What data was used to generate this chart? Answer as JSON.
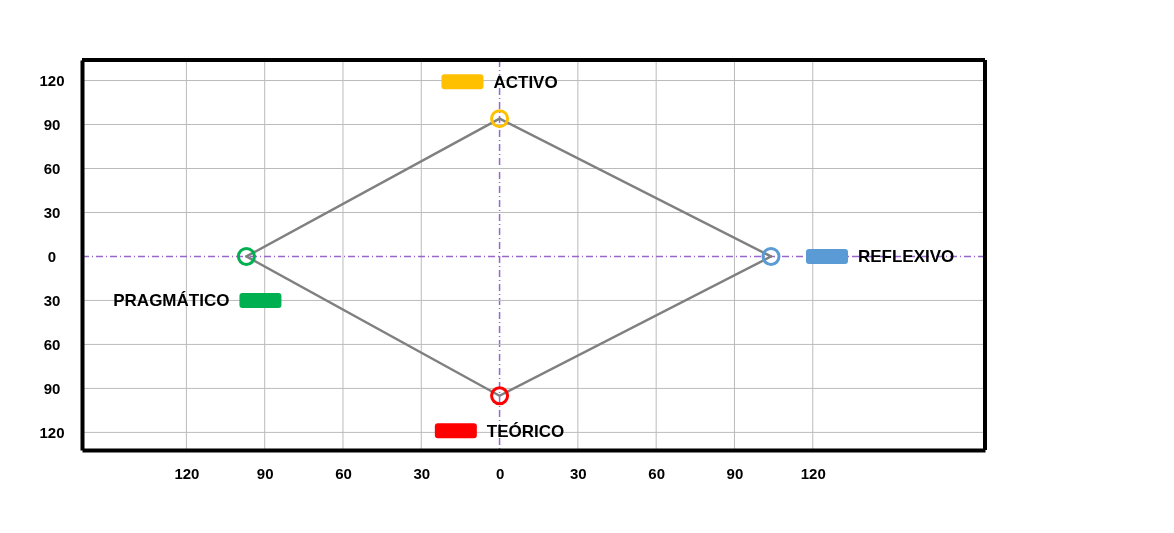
{
  "chart_data": {
    "type": "scatter",
    "series": [
      {
        "type": "line",
        "color": "#808080",
        "marker": "none",
        "x": [
          -97,
          0,
          104
        ],
        "values": [
          0,
          94,
          0
        ]
      },
      {
        "type": "line",
        "color": "#808080",
        "marker": "none",
        "x": [
          -97,
          0,
          104
        ],
        "values": [
          0,
          -95,
          0
        ]
      },
      {
        "colors": [
          "#ffc000",
          "#5b9bd5",
          "#ff0000",
          "#00b050"
        ],
        "marker": "circle",
        "x": [
          0,
          104,
          0,
          -97
        ],
        "values": [
          94,
          0,
          -95,
          0
        ]
      }
    ],
    "annotations": [
      "ACTIVO",
      "REFLEXIVO",
      "TEÓRICO",
      "PRAGMÁTICO"
    ],
    "xlim": [
      -160,
      186
    ],
    "ylim": [
      -132,
      134
    ],
    "xticks": [
      {
        "value": -120,
        "label": "120"
      },
      {
        "value": -90,
        "label": "90"
      },
      {
        "value": -60,
        "label": "60"
      },
      {
        "value": -30,
        "label": "30"
      },
      0,
      30,
      60,
      90,
      120
    ],
    "yticks": [
      {
        "value": -120,
        "label": "120"
      },
      {
        "value": -90,
        "label": "90"
      },
      {
        "value": -60,
        "label": "60"
      },
      {
        "value": -30,
        "label": "30"
      },
      0,
      30,
      60,
      90,
      120
    ],
    "grid": true
  }
}
